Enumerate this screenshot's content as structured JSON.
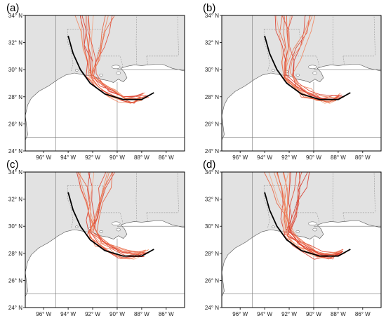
{
  "figure": {
    "panels": [
      {
        "id": "a",
        "label": "(a)"
      },
      {
        "id": "b",
        "label": "(b)"
      },
      {
        "id": "c",
        "label": "(c)"
      },
      {
        "id": "d",
        "label": "(d)"
      }
    ],
    "lat_labels": [
      "34° N",
      "32° N",
      "30° N",
      "28° N",
      "26° N",
      "24° N"
    ],
    "lon_labels": [
      "96° W",
      "94° W",
      "92° W",
      "90° W",
      "88° W",
      "86° W"
    ],
    "colors": {
      "land": "#e2e2e2",
      "water": "#ffffff",
      "coast": "#555555",
      "border": "#888888",
      "frame": "#000000",
      "observed_track": "#000000",
      "ensemble_tracks": [
        "#d93a2b",
        "#e8603e",
        "#f0855f",
        "#f4a582",
        "#e04a35"
      ]
    },
    "observed_track": {
      "name": "observed",
      "points": [
        [
          -94.0,
          32.5
        ],
        [
          -93.6,
          31.2
        ],
        [
          -93.0,
          30.0
        ],
        [
          -92.2,
          29.0
        ],
        [
          -91.0,
          28.2
        ],
        [
          -89.5,
          27.8
        ],
        [
          -88.0,
          27.8
        ],
        [
          -87.0,
          28.3
        ]
      ]
    }
  }
}
